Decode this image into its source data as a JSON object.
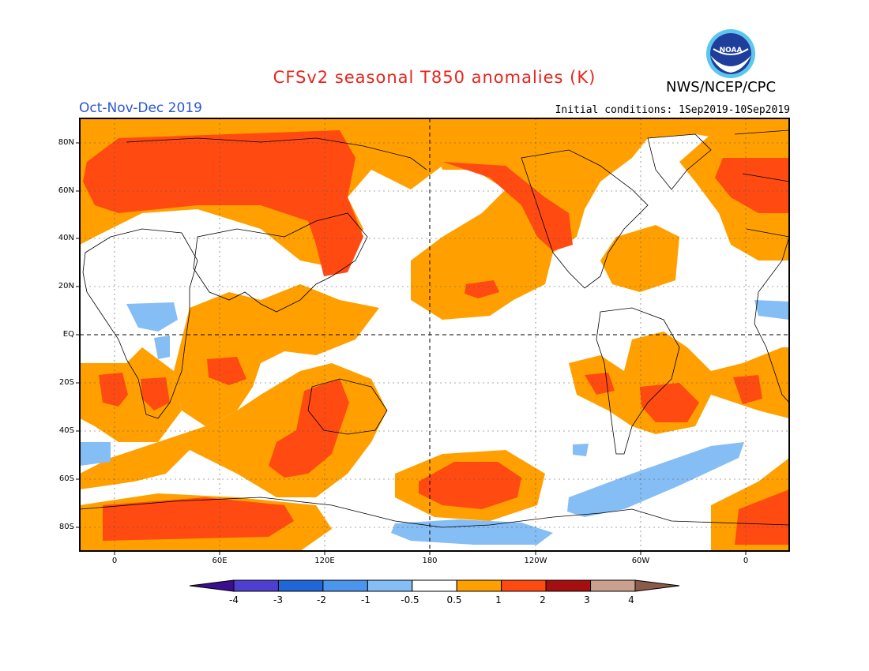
{
  "title": "CFSv2 seasonal T850 anomalies (K)",
  "agency": "NWS/NCEP/CPC",
  "season": "Oct-Nov-Dec 2019",
  "initial_conditions": "Initial conditions: 1Sep2019-10Sep2019",
  "map": {
    "lat_labels": [
      "80N",
      "60N",
      "40N",
      "20N",
      "EQ",
      "20S",
      "40S",
      "60S",
      "80S"
    ],
    "lon_labels": [
      "0",
      "60E",
      "120E",
      "180",
      "120W",
      "60W",
      "0"
    ],
    "grid": true
  },
  "colorbar": {
    "labels": [
      "-4",
      "-3",
      "-2",
      "-1",
      "-0.5",
      "0.5",
      "1",
      "2",
      "3",
      "4"
    ],
    "colors": [
      "#3a0e8f",
      "#4f3fd1",
      "#1f66d8",
      "#4c95ec",
      "#85bdf5",
      "#ffffff",
      "#ffa000",
      "#ff4a12",
      "#a50f0f",
      "#caa08e",
      "#8a5a4a"
    ],
    "units": "K"
  }
}
